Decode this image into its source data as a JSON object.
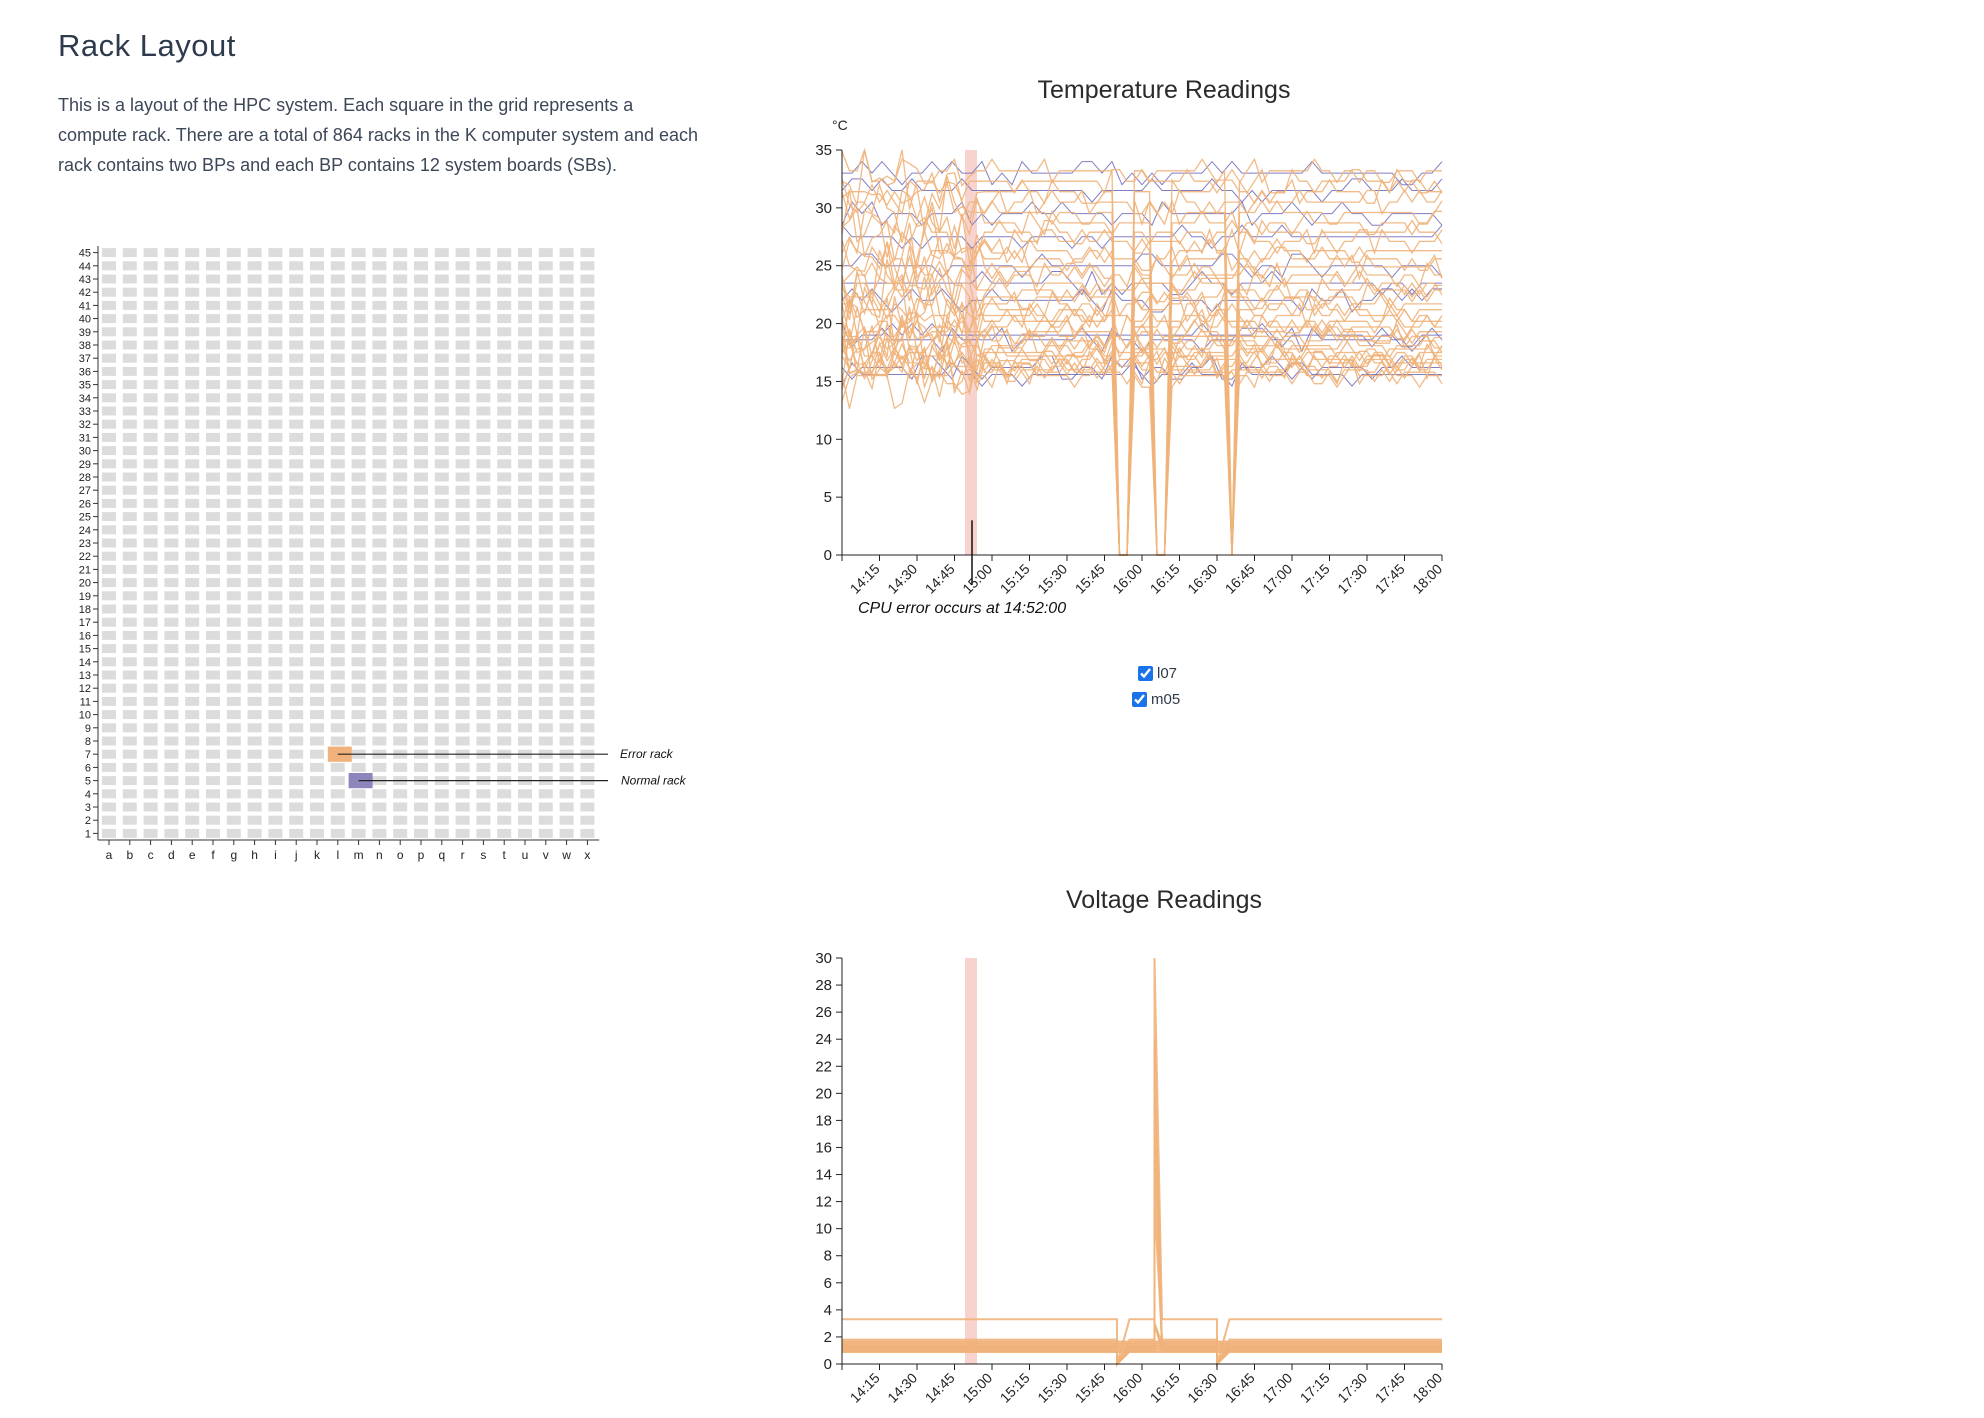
{
  "page": {
    "title": "Rack Layout",
    "intro": "This is a layout of the HPC system. Each square in the grid represents a compute rack. There are a total of 864 racks in the K computer system and each rack contains two BPs and each BP contains 12 system boards (SBs)."
  },
  "rack_grid": {
    "columns": [
      "a",
      "b",
      "c",
      "d",
      "e",
      "f",
      "g",
      "h",
      "i",
      "j",
      "k",
      "l",
      "m",
      "n",
      "o",
      "p",
      "q",
      "r",
      "s",
      "t",
      "u",
      "v",
      "w",
      "x"
    ],
    "rows": [
      "1",
      "2",
      "3",
      "4",
      "5",
      "6",
      "7",
      "8",
      "9",
      "10",
      "11",
      "12",
      "13",
      "14",
      "15",
      "16",
      "17",
      "18",
      "19",
      "20",
      "21",
      "22",
      "23",
      "24",
      "25",
      "26",
      "27",
      "28",
      "29",
      "30",
      "31",
      "32",
      "33",
      "34",
      "35",
      "36",
      "37",
      "38",
      "39",
      "40",
      "41",
      "42",
      "43",
      "44",
      "45"
    ],
    "error_rack_label": "Error rack",
    "normal_rack_label": "Normal rack",
    "error_rack": {
      "column": "l",
      "row": "7"
    },
    "normal_rack": {
      "column": "m",
      "row": "5"
    },
    "colors": {
      "cell": "#dcdcdc",
      "error": "#f0b27a",
      "normal": "#8c86bd"
    }
  },
  "chart_data": [
    {
      "type": "line",
      "title": "Temperature Readings",
      "ylabel": "°C",
      "x_ticks": [
        "14:15",
        "14:30",
        "14:45",
        "15:00",
        "15:15",
        "15:30",
        "15:45",
        "16:00",
        "16:15",
        "16:30",
        "16:45",
        "17:00",
        "17:15",
        "17:30",
        "17:45",
        "18:00"
      ],
      "xlim": [
        "14:00",
        "18:00"
      ],
      "ylim": [
        0,
        35
      ],
      "y_ticks": [
        0,
        5,
        10,
        15,
        20,
        25,
        30,
        35
      ],
      "annotation": "CPU error occurs at 14:52:00",
      "error_time": "14:52",
      "series": [
        {
          "name": "l07",
          "color": "#f0b27a"
        },
        {
          "name": "m05",
          "color": "#6b67b8"
        }
      ],
      "series_levels": {
        "l07": [
          15.5,
          15.8,
          16.0,
          16.3,
          16.6,
          16.9,
          17.2,
          17.5,
          17.8,
          18.1,
          18.5,
          18.9,
          19.3,
          19.7,
          20.2,
          20.7,
          21.2,
          21.7,
          22.3,
          22.9,
          23.5,
          24.2,
          24.9,
          25.6,
          26.3,
          27.1,
          27.9,
          28.7,
          29.6,
          30.5,
          31.4,
          32.3,
          33.2
        ],
        "m05": [
          15.6,
          16.2,
          18.6,
          19.0,
          22.0,
          23.5,
          25.0,
          27.5,
          29.5,
          31.5,
          33.0
        ]
      },
      "l07_drops": [
        {
          "from": "15:45",
          "to": "15:50",
          "back": "15:55"
        },
        {
          "from": "16:01",
          "to": "16:04",
          "back": "16:09"
        },
        {
          "from": "16:20",
          "to": "16:35",
          "back": "16:38"
        }
      ]
    },
    {
      "type": "line",
      "title": "Voltage Readings",
      "x_ticks": [
        "14:15",
        "14:30",
        "14:45",
        "15:00",
        "15:15",
        "15:30",
        "15:45",
        "16:00",
        "16:15",
        "16:30",
        "16:45",
        "17:00",
        "17:15",
        "17:30",
        "17:45",
        "18:00"
      ],
      "xlim": [
        "14:00",
        "18:00"
      ],
      "ylim": [
        0,
        30
      ],
      "y_ticks": [
        0,
        2,
        4,
        6,
        8,
        10,
        12,
        14,
        16,
        18,
        20,
        22,
        24,
        26,
        28,
        30
      ],
      "error_time": "14:52",
      "series": [
        {
          "name": "l07",
          "color": "#f0b27a",
          "levels": [
            0.9,
            1.0,
            1.1,
            1.2,
            1.3,
            1.5,
            1.8,
            3.3
          ]
        }
      ],
      "spike": {
        "time": "16:05",
        "peak": 30
      }
    }
  ],
  "legend": {
    "items": [
      {
        "label": "l07",
        "checked": true
      },
      {
        "label": "m05",
        "checked": true
      }
    ]
  }
}
